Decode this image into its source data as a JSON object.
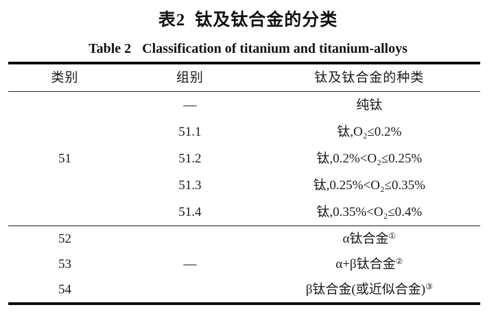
{
  "colors": {
    "background": "#ffffff",
    "text": "#1a1a1a",
    "rule": "#0d0d0d"
  },
  "titles": {
    "zh_label": "表2",
    "zh_text": "钛及钛合金的分类",
    "en_label": "Table 2",
    "en_text": "Classification of titanium and titanium-alloys"
  },
  "table": {
    "columns": [
      "类别",
      "组别",
      "钛及钛合金的种类"
    ],
    "sections": [
      {
        "category": "51",
        "rows": [
          {
            "group": "—",
            "type": "纯钛"
          },
          {
            "group": "51.1",
            "type": "钛,O₂≤0.2%"
          },
          {
            "group": "51.2",
            "type": "钛,0.2%<O₂≤0.25%"
          },
          {
            "group": "51.3",
            "type": "钛,0.25%<O₂≤0.35%"
          },
          {
            "group": "51.4",
            "type": "钛,0.35%<O₂≤0.4%"
          }
        ]
      },
      {
        "group": "—",
        "rows": [
          {
            "category": "52",
            "type": "α钛合金",
            "sup": "①"
          },
          {
            "category": "53",
            "type": "α+β钛合金",
            "sup": "②"
          },
          {
            "category": "54",
            "type": "β钛合金(或近似合金)",
            "sup": "③"
          }
        ]
      }
    ]
  }
}
